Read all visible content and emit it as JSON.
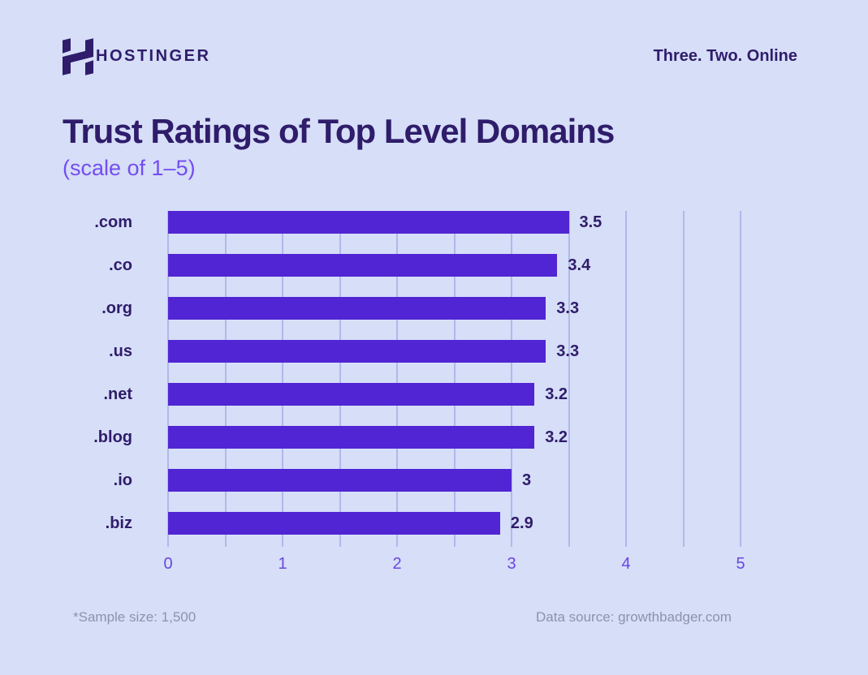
{
  "header": {
    "logo": "hostinger-h-mark",
    "wordmark": "HOSTINGER",
    "tagline": "Three. Two. Online"
  },
  "title": "Trust Ratings of Top Level Domains",
  "subtitle": "(scale of 1–5)",
  "chart_data": {
    "type": "bar",
    "orientation": "horizontal",
    "title": "Trust Ratings of Top Level Domains",
    "subtitle": "(scale of 1–5)",
    "categories": [
      ".com",
      ".co",
      ".org",
      ".us",
      ".net",
      ".blog",
      ".io",
      ".biz"
    ],
    "values": [
      3.5,
      3.4,
      3.3,
      3.3,
      3.2,
      3.2,
      3,
      2.9
    ],
    "value_labels": [
      "3.5",
      "3.4",
      "3.3",
      "3.3",
      "3.2",
      "3.2",
      "3",
      "2.9"
    ],
    "xlim": [
      0,
      5
    ],
    "x_ticks": [
      "0",
      "1",
      "2",
      "3",
      "4",
      "5"
    ],
    "minor_gridline_step": 0.5,
    "grid": true,
    "legend": false
  },
  "footnotes": {
    "sample": "*Sample size: 1,500",
    "source": "Data source: growthbadger.com"
  },
  "colors": {
    "background": "#d6def8",
    "bar": "#5125d3",
    "dark_text": "#2f1c6a",
    "subtitle_purple": "#744df0",
    "tick_purple": "#6a46e0",
    "gridline": "#afb9ec",
    "muted_text": "#8e93ad"
  }
}
